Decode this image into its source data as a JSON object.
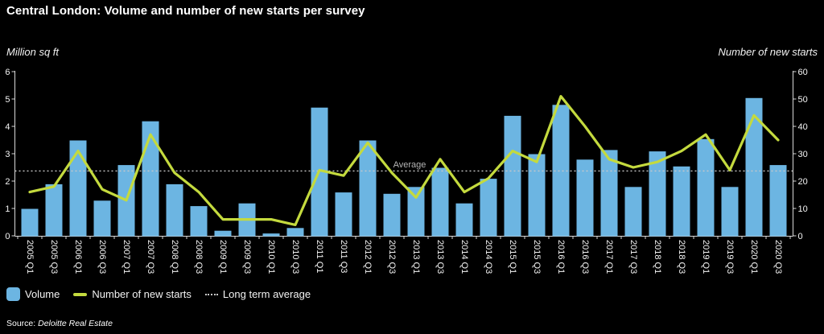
{
  "title": "Central London: Volume and number of new starts per survey",
  "source": {
    "prefix": "Source:",
    "name": "Deloitte Real Estate"
  },
  "legend": [
    {
      "label": "Volume",
      "swatch": "bar-swatch"
    },
    {
      "label": "Number of new starts",
      "swatch": "line-swatch"
    },
    {
      "label": "Long term average",
      "swatch": "dotted-swatch"
    }
  ],
  "colors": {
    "background": "#000000",
    "bar": "#6cb5e2",
    "line": "#c4da3e",
    "average_line": "#c8c8c8",
    "axis": "#d8d8d8",
    "tick_text": "#f5f5f5",
    "annotation_text": "#b5b5b5"
  },
  "chart_data": {
    "type": "bar",
    "title": "Central London: Volume and number of new starts per survey",
    "categories": [
      "2005 Q1",
      "2005 Q3",
      "2006 Q1",
      "2006 Q3",
      "2007 Q1",
      "2007 Q3",
      "2008 Q1",
      "2008 Q3",
      "2009 Q1",
      "2009 Q3",
      "2010 Q1",
      "2010 Q3",
      "2011 Q1",
      "2011 Q3",
      "2012 Q1",
      "2012 Q3",
      "2013 Q1",
      "2013 Q3",
      "2014 Q1",
      "2014 Q3",
      "2015 Q1",
      "2015 Q3",
      "2016 Q1",
      "2016 Q3",
      "2017 Q1",
      "2017 Q3",
      "2018 Q1",
      "2018 Q3",
      "2019 Q1",
      "2019 Q3",
      "2020 Q1",
      "2020 Q3"
    ],
    "series": [
      {
        "name": "Volume",
        "chart_type": "bar",
        "axis": "left",
        "values": [
          1.0,
          1.9,
          3.5,
          1.3,
          2.6,
          4.2,
          1.9,
          1.1,
          0.2,
          1.2,
          0.1,
          0.3,
          4.7,
          1.6,
          3.5,
          1.55,
          1.8,
          2.5,
          1.2,
          2.1,
          4.4,
          3.0,
          4.8,
          2.8,
          3.15,
          1.8,
          3.1,
          2.55,
          3.55,
          1.8,
          5.05,
          2.6
        ]
      },
      {
        "name": "Number of new starts",
        "chart_type": "line",
        "axis": "right",
        "values": [
          16,
          18,
          31,
          17,
          13,
          37,
          23,
          16,
          6,
          6,
          6,
          4,
          24,
          22,
          34,
          23,
          14,
          28,
          16,
          21,
          31,
          27,
          51,
          40,
          28,
          25,
          27,
          31,
          37,
          24,
          44,
          35
        ]
      }
    ],
    "reference_line": {
      "name": "Long term average",
      "axis": "left",
      "value": 2.37,
      "annotation": "Average"
    },
    "left_axis": {
      "label": "Million sq ft",
      "min": 0,
      "max": 6,
      "ticks": [
        0,
        1,
        2,
        3,
        4,
        5,
        6
      ]
    },
    "right_axis": {
      "label": "Number of new starts",
      "min": 0,
      "max": 60,
      "ticks": [
        0,
        10,
        20,
        30,
        40,
        50,
        60
      ]
    },
    "grid": false,
    "legend_position": "bottom-left"
  }
}
